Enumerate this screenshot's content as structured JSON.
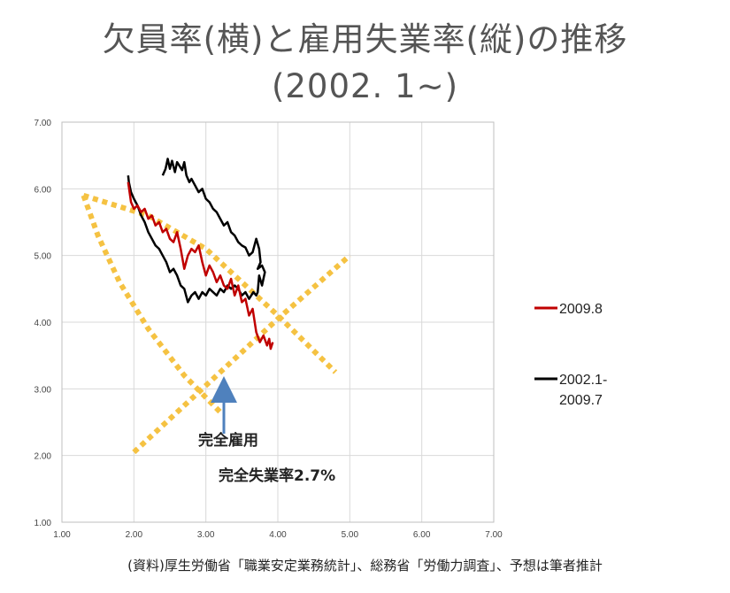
{
  "header": {
    "title": "欠員率(横)と雇用失業率(縦)の推移",
    "subtitle": "(2002. 1~)"
  },
  "source_note": "(資料)厚生労働省「職業安定業務統計」、総務省「労働力調査」、予想は筆者推計",
  "chart_data": {
    "type": "line",
    "title": "欠員率(横)と雇用失業率(縦)の推移",
    "subtitle": "(2002. 1~)",
    "xlim": [
      1.0,
      7.0
    ],
    "ylim": [
      1.0,
      7.0
    ],
    "x_ticks": [
      "1.00",
      "2.00",
      "3.00",
      "4.00",
      "5.00",
      "6.00",
      "7.00"
    ],
    "y_ticks": [
      "1.00",
      "2.00",
      "3.00",
      "4.00",
      "5.00",
      "6.00",
      "7.00"
    ],
    "grid": true,
    "legend_position": "right",
    "colors": {
      "recent": "#c00000",
      "history": "#000000",
      "projection": "#f5c242"
    },
    "series": [
      {
        "name": "2002.1-2009.7",
        "color": "#000000",
        "x": [
          2.4,
          2.44,
          2.47,
          2.5,
          2.53,
          2.57,
          2.6,
          2.63,
          2.67,
          2.7,
          2.73,
          2.77,
          2.8,
          2.85,
          2.9,
          2.95,
          3.0,
          3.05,
          3.1,
          3.15,
          3.2,
          3.25,
          3.3,
          3.35,
          3.4,
          3.45,
          3.5,
          3.55,
          3.6,
          3.65,
          3.7,
          3.74,
          3.76,
          3.72,
          3.78,
          3.82,
          3.78,
          3.74,
          3.72,
          3.7,
          3.66,
          3.6,
          3.55,
          3.5,
          3.45,
          3.4,
          3.35,
          3.3,
          3.25,
          3.2,
          3.15,
          3.1,
          3.05,
          3.0,
          2.95,
          2.9,
          2.85,
          2.8,
          2.75,
          2.7,
          2.65,
          2.6,
          2.55,
          2.5,
          2.45,
          2.4,
          2.35,
          2.3,
          2.25,
          2.2,
          2.15,
          2.1,
          2.05,
          2.0,
          1.96,
          1.93,
          1.92
        ],
        "y": [
          6.2,
          6.3,
          6.45,
          6.3,
          6.42,
          6.25,
          6.4,
          6.35,
          6.28,
          6.4,
          6.2,
          6.1,
          6.15,
          6.05,
          5.95,
          6.0,
          5.85,
          5.8,
          5.7,
          5.65,
          5.55,
          5.45,
          5.5,
          5.35,
          5.3,
          5.2,
          5.15,
          5.12,
          5.0,
          5.05,
          5.25,
          5.1,
          4.9,
          4.8,
          4.85,
          4.75,
          4.55,
          4.7,
          4.45,
          4.4,
          4.45,
          4.35,
          4.45,
          4.4,
          4.5,
          4.55,
          4.5,
          4.55,
          4.45,
          4.5,
          4.4,
          4.45,
          4.5,
          4.4,
          4.45,
          4.35,
          4.45,
          4.4,
          4.3,
          4.5,
          4.55,
          4.7,
          4.8,
          4.75,
          4.9,
          5.0,
          5.1,
          5.15,
          5.25,
          5.35,
          5.5,
          5.6,
          5.75,
          5.85,
          5.95,
          6.1,
          6.2
        ]
      },
      {
        "name": "2009.8",
        "color": "#c00000",
        "x": [
          1.92,
          1.96,
          2.0,
          2.05,
          2.1,
          2.15,
          2.2,
          2.25,
          2.3,
          2.35,
          2.4,
          2.45,
          2.5,
          2.55,
          2.6,
          2.65,
          2.7,
          2.75,
          2.8,
          2.85,
          2.9,
          2.95,
          3.0,
          3.05,
          3.1,
          3.15,
          3.2,
          3.25,
          3.3,
          3.35,
          3.4,
          3.45,
          3.5,
          3.55,
          3.6,
          3.65,
          3.7,
          3.75,
          3.8,
          3.85,
          3.88,
          3.9,
          3.93
        ],
        "y": [
          6.1,
          5.8,
          5.7,
          5.75,
          5.65,
          5.7,
          5.55,
          5.6,
          5.45,
          5.5,
          5.35,
          5.4,
          5.25,
          5.2,
          5.35,
          5.1,
          4.8,
          5.0,
          5.1,
          5.05,
          5.15,
          4.9,
          4.7,
          4.85,
          4.75,
          4.6,
          4.7,
          4.55,
          4.5,
          4.65,
          4.4,
          4.55,
          4.3,
          4.35,
          4.1,
          4.2,
          3.85,
          3.7,
          3.8,
          3.65,
          3.75,
          3.6,
          3.7
        ]
      }
    ],
    "projections": [
      {
        "x": [
          1.3,
          2.2,
          3.0,
          4.0,
          4.8
        ],
        "y": [
          5.9,
          5.6,
          5.1,
          4.1,
          3.25
        ],
        "style": "dotted"
      },
      {
        "x": [
          1.3,
          1.5,
          1.8,
          2.2,
          2.7,
          3.2
        ],
        "y": [
          5.9,
          5.3,
          4.6,
          3.9,
          3.2,
          2.65
        ],
        "style": "dotted"
      },
      {
        "x": [
          2.0,
          3.0,
          4.0,
          5.0
        ],
        "y": [
          2.05,
          3.05,
          4.05,
          5.0
        ],
        "style": "dotted"
      }
    ],
    "annotations": [
      {
        "label": "完全雇用",
        "x": 3.25,
        "y": 3.15,
        "arrow_to": [
          3.25,
          3.15
        ]
      },
      {
        "label": "完全失業率2.7%"
      }
    ]
  }
}
